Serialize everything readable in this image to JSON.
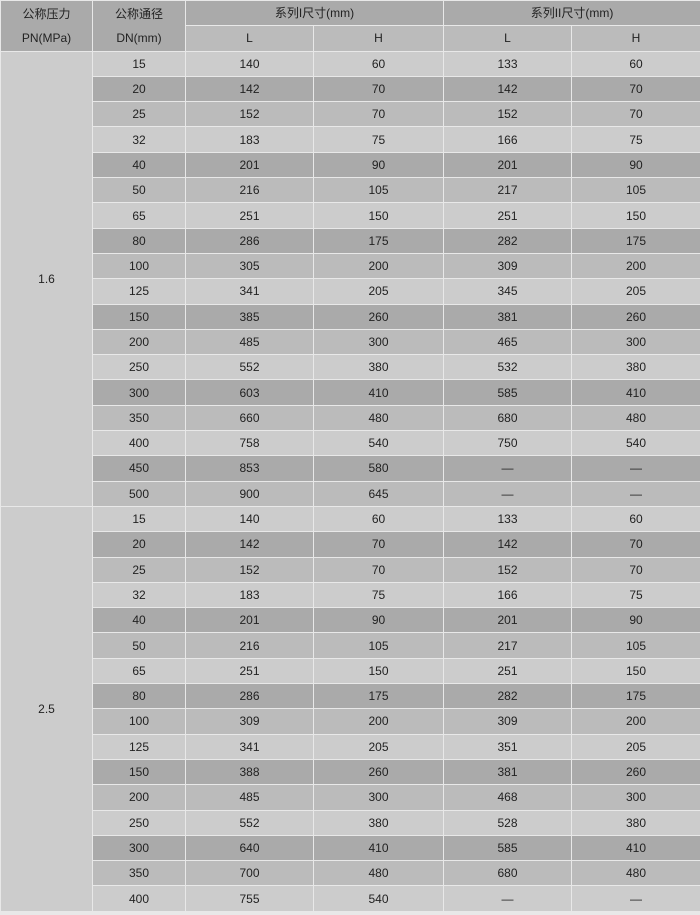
{
  "header": {
    "pn_label": "公称压力",
    "pn_unit": "PN(MPa)",
    "dn_label": "公称通径",
    "dn_unit": "DN(mm)",
    "series1": "系列I尺寸(mm)",
    "series2": "系列II尺寸(mm)",
    "sub": [
      "L",
      "H",
      "L",
      "H"
    ]
  },
  "row_colors": [
    "#cccccc",
    "#aaaaaa",
    "#bbbbbb"
  ],
  "groups": [
    {
      "pn": "1.6",
      "rows": [
        [
          "15",
          "140",
          "60",
          "133",
          "60"
        ],
        [
          "20",
          "142",
          "70",
          "142",
          "70"
        ],
        [
          "25",
          "152",
          "70",
          "152",
          "70"
        ],
        [
          "32",
          "183",
          "75",
          "166",
          "75"
        ],
        [
          "40",
          "201",
          "90",
          "201",
          "90"
        ],
        [
          "50",
          "216",
          "105",
          "217",
          "105"
        ],
        [
          "65",
          "251",
          "150",
          "251",
          "150"
        ],
        [
          "80",
          "286",
          "175",
          "282",
          "175"
        ],
        [
          "100",
          "305",
          "200",
          "309",
          "200"
        ],
        [
          "125",
          "341",
          "205",
          "345",
          "205"
        ],
        [
          "150",
          "385",
          "260",
          "381",
          "260"
        ],
        [
          "200",
          "485",
          "300",
          "465",
          "300"
        ],
        [
          "250",
          "552",
          "380",
          "532",
          "380"
        ],
        [
          "300",
          "603",
          "410",
          "585",
          "410"
        ],
        [
          "350",
          "660",
          "480",
          "680",
          "480"
        ],
        [
          "400",
          "758",
          "540",
          "750",
          "540"
        ],
        [
          "450",
          "853",
          "580",
          "—",
          "—"
        ],
        [
          "500",
          "900",
          "645",
          "—",
          "—"
        ]
      ]
    },
    {
      "pn": "2.5",
      "rows": [
        [
          "15",
          "140",
          "60",
          "133",
          "60"
        ],
        [
          "20",
          "142",
          "70",
          "142",
          "70"
        ],
        [
          "25",
          "152",
          "70",
          "152",
          "70"
        ],
        [
          "32",
          "183",
          "75",
          "166",
          "75"
        ],
        [
          "40",
          "201",
          "90",
          "201",
          "90"
        ],
        [
          "50",
          "216",
          "105",
          "217",
          "105"
        ],
        [
          "65",
          "251",
          "150",
          "251",
          "150"
        ],
        [
          "80",
          "286",
          "175",
          "282",
          "175"
        ],
        [
          "100",
          "309",
          "200",
          "309",
          "200"
        ],
        [
          "125",
          "341",
          "205",
          "351",
          "205"
        ],
        [
          "150",
          "388",
          "260",
          "381",
          "260"
        ],
        [
          "200",
          "485",
          "300",
          "468",
          "300"
        ],
        [
          "250",
          "552",
          "380",
          "528",
          "380"
        ],
        [
          "300",
          "640",
          "410",
          "585",
          "410"
        ],
        [
          "350",
          "700",
          "480",
          "680",
          "480"
        ],
        [
          "400",
          "755",
          "540",
          "—",
          "—"
        ]
      ]
    }
  ]
}
